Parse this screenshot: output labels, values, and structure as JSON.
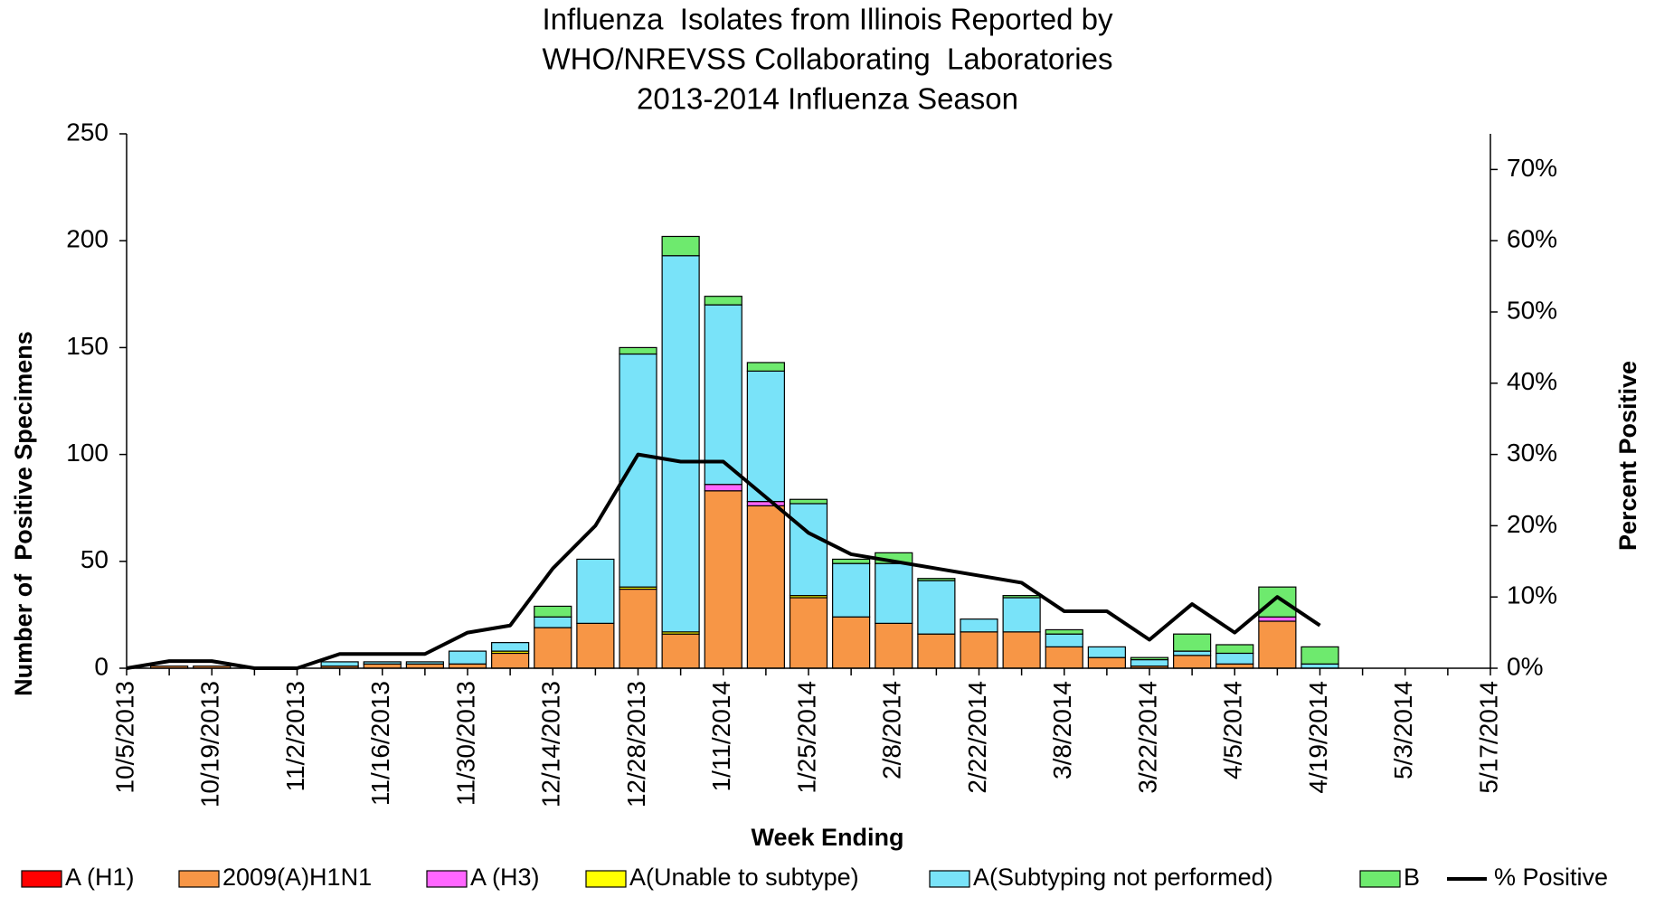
{
  "chart_data": {
    "type": "bar",
    "title": [
      "Influenza  Isolates from Illinois Reported by",
      "WHO/NREVSS Collaborating  Laboratories",
      "2013-2014 Influenza Season"
    ],
    "x_label": "Week Ending",
    "y_label": "Number of  Positive Specimens",
    "y2_label": "Percent Positive",
    "categories": [
      "10/5/2013",
      null,
      "10/19/2013",
      null,
      "11/2/2013",
      null,
      "11/16/2013",
      null,
      "11/30/2013",
      null,
      "12/14/2013",
      null,
      "12/28/2013",
      null,
      "1/11/2014",
      null,
      "1/25/2014",
      null,
      "2/8/2014",
      null,
      "2/22/2014",
      null,
      "3/8/2014",
      null,
      "3/22/2014",
      null,
      "4/5/2014",
      null,
      "4/19/2014",
      null,
      "5/3/2014",
      null,
      "5/17/2014"
    ],
    "ylim": [
      0,
      250
    ],
    "yticks": [
      0,
      50,
      100,
      150,
      200,
      250
    ],
    "y2lim": [
      0,
      75
    ],
    "y2ticks": [
      {
        "value": 0,
        "label": "0%"
      },
      {
        "value": 10,
        "label": "10%"
      },
      {
        "value": 20,
        "label": "20%"
      },
      {
        "value": 30,
        "label": "30%"
      },
      {
        "value": 40,
        "label": "40%"
      },
      {
        "value": 50,
        "label": "50%"
      },
      {
        "value": 60,
        "label": "60%"
      },
      {
        "value": 70,
        "label": "70%"
      }
    ],
    "stacked": true,
    "series": [
      {
        "name": "A (H1)",
        "color": "#ff0000",
        "values": [
          0,
          0,
          0,
          0,
          0,
          0,
          0,
          0,
          0,
          0,
          0,
          0,
          0,
          0,
          0,
          0,
          0,
          0,
          0,
          0,
          0,
          0,
          0,
          0,
          0,
          0,
          0,
          0,
          0,
          0,
          0,
          0,
          0
        ]
      },
      {
        "name": "2009(A)H1N1",
        "color": "#f79646",
        "values": [
          0,
          1,
          1,
          0,
          0,
          1,
          2,
          2,
          2,
          7,
          19,
          21,
          37,
          16,
          83,
          76,
          33,
          24,
          21,
          16,
          17,
          17,
          10,
          5,
          1,
          6,
          2,
          22,
          0,
          0,
          0,
          0,
          0
        ]
      },
      {
        "name": "A (H3)",
        "color": "#ff66ff",
        "values": [
          0,
          0,
          0,
          0,
          0,
          0,
          0,
          0,
          0,
          0,
          0,
          0,
          0,
          0,
          3,
          2,
          0,
          0,
          0,
          0,
          0,
          0,
          0,
          0,
          0,
          0,
          0,
          2,
          0,
          0,
          0,
          0,
          0
        ]
      },
      {
        "name": "A(Unable to subtype)",
        "color": "#ffff00",
        "values": [
          0,
          0,
          0,
          0,
          0,
          0,
          0,
          0,
          0,
          1,
          0,
          0,
          1,
          1,
          0,
          0,
          1,
          0,
          0,
          0,
          0,
          0,
          0,
          0,
          0,
          0,
          0,
          0,
          0,
          0,
          0,
          0,
          0
        ]
      },
      {
        "name": "A(Subtyping not performed)",
        "color": "#79e3f9",
        "values": [
          0,
          0,
          0,
          0,
          0,
          2,
          1,
          1,
          6,
          4,
          5,
          30,
          109,
          176,
          84,
          61,
          43,
          25,
          28,
          25,
          6,
          16,
          6,
          5,
          3,
          2,
          5,
          0,
          2,
          0,
          0,
          0,
          0
        ]
      },
      {
        "name": "B",
        "color": "#6eea6e",
        "values": [
          0,
          0,
          0,
          0,
          0,
          0,
          0,
          0,
          0,
          0,
          5,
          0,
          3,
          9,
          4,
          4,
          2,
          2,
          5,
          1,
          0,
          1,
          2,
          0,
          1,
          8,
          4,
          14,
          8,
          0,
          0,
          0,
          0
        ]
      },
      {
        "name": "% Positive",
        "type": "line",
        "axis": "y2",
        "color": "#000000",
        "values": [
          0,
          1,
          1,
          0,
          0,
          2,
          2,
          2,
          5,
          6,
          14,
          20,
          30,
          29,
          29,
          24,
          19,
          16,
          15,
          14,
          13,
          12,
          8,
          8,
          4,
          9,
          5,
          10,
          6,
          null,
          null,
          null,
          null
        ]
      }
    ]
  }
}
